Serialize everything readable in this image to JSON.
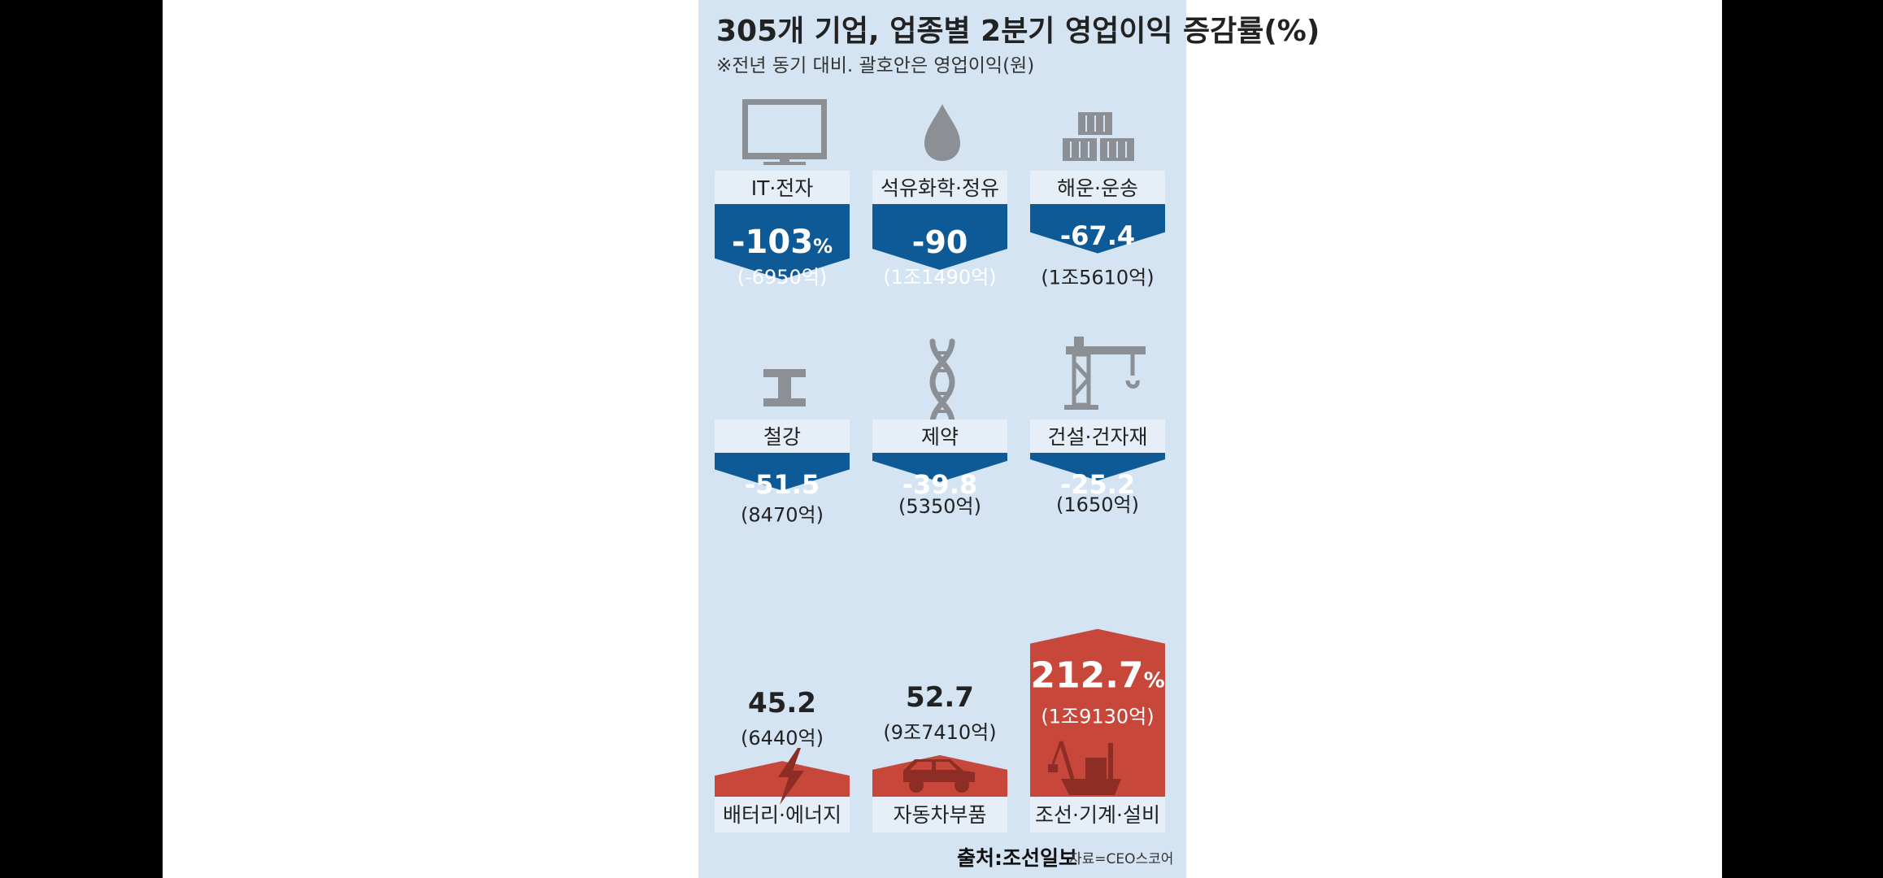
{
  "colors": {
    "background": "#d4e4f3",
    "decrease": "#0e5a96",
    "increase": "#c7473b",
    "icon": "#8c8f93",
    "band": "#e6eef7"
  },
  "chart_data": {
    "type": "bar",
    "title": "305개 기업, 업종별 2분기 영업이익 증감률(%)",
    "subtitle": "※전년 동기 대비. 괄호안은 영업이익(원)",
    "categories": [
      "IT·전자",
      "석유화학·정유",
      "해운·운송",
      "철강",
      "제약",
      "건설·건자재",
      "배터리·에너지",
      "자동차부품",
      "조선·기계·설비"
    ],
    "values": [
      -103,
      -90,
      -67.4,
      -51.5,
      -39.8,
      -25.2,
      45.2,
      52.7,
      212.7
    ],
    "items": [
      {
        "category": "IT·전자",
        "value": -103,
        "value_label": "-103",
        "unit": "%",
        "profit": "(-6950억)",
        "icon": "monitor-icon"
      },
      {
        "category": "석유화학·정유",
        "value": -90,
        "value_label": "-90",
        "unit": "",
        "profit": "(1조1490억)",
        "icon": "oil-drop-icon"
      },
      {
        "category": "해운·운송",
        "value": -67.4,
        "value_label": "-67.4",
        "unit": "",
        "profit": "(1조5610억)",
        "icon": "containers-icon"
      },
      {
        "category": "철강",
        "value": -51.5,
        "value_label": "-51.5",
        "unit": "",
        "profit": "(8470억)",
        "icon": "i-beam-icon"
      },
      {
        "category": "제약",
        "value": -39.8,
        "value_label": "-39.8",
        "unit": "",
        "profit": "(5350억)",
        "icon": "dna-icon"
      },
      {
        "category": "건설·건자재",
        "value": -25.2,
        "value_label": "-25.2",
        "unit": "",
        "profit": "(1650억)",
        "icon": "crane-icon"
      },
      {
        "category": "배터리·에너지",
        "value": 45.2,
        "value_label": "45.2",
        "unit": "",
        "profit": "(6440억)",
        "icon": "lightning-icon"
      },
      {
        "category": "자동차부품",
        "value": 52.7,
        "value_label": "52.7",
        "unit": "",
        "profit": "(9조7410억)",
        "icon": "car-icon"
      },
      {
        "category": "조선·기계·설비",
        "value": 212.7,
        "value_label": "212.7",
        "unit": "%",
        "profit": "(1조9130억)",
        "icon": "ship-icon"
      }
    ]
  },
  "source": {
    "label": "출처:조선일보",
    "credit": "자료=CEO스코어"
  }
}
